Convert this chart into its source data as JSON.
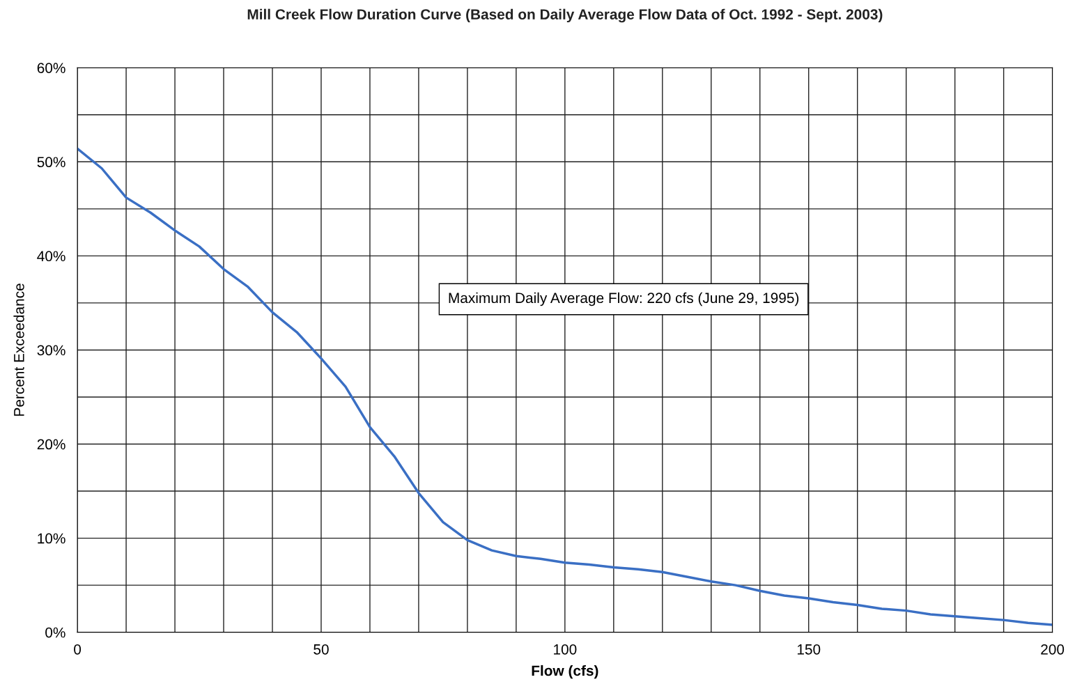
{
  "chart_data": {
    "type": "line",
    "title": "Mill Creek Flow Duration Curve (Based on Daily Average Flow Data of Oct. 1992 - Sept. 2003)",
    "xlabel": "Flow (cfs)",
    "ylabel": "Percent Exceedance",
    "x": [
      0,
      5,
      10,
      15,
      20,
      25,
      30,
      35,
      40,
      45,
      50,
      55,
      60,
      65,
      70,
      75,
      80,
      85,
      90,
      95,
      100,
      105,
      110,
      115,
      120,
      125,
      130,
      135,
      140,
      145,
      150,
      155,
      160,
      165,
      170,
      175,
      180,
      185,
      190,
      195,
      200
    ],
    "series": [
      {
        "color": "#3a6fc4",
        "values": [
          51.4,
          49.3,
          46.2,
          44.6,
          42.7,
          41.0,
          38.6,
          36.7,
          34.0,
          31.9,
          29.1,
          26.1,
          21.8,
          18.7,
          14.8,
          11.7,
          9.8,
          8.7,
          8.1,
          7.8,
          7.4,
          7.2,
          6.9,
          6.7,
          6.4,
          5.9,
          5.4,
          5.0,
          4.4,
          3.9,
          3.6,
          3.2,
          2.9,
          2.5,
          2.3,
          1.9,
          1.7,
          1.5,
          1.3,
          1.0,
          0.8
        ]
      }
    ],
    "xlim": [
      0,
      200
    ],
    "xticks": [
      0,
      {
        "value": 10,
        "label": null
      },
      {
        "value": 20,
        "label": null
      },
      {
        "value": 30,
        "label": null
      },
      {
        "value": 40,
        "label": null
      },
      50,
      {
        "value": 60,
        "label": null
      },
      {
        "value": 70,
        "label": null
      },
      {
        "value": 80,
        "label": null
      },
      {
        "value": 90,
        "label": null
      },
      100,
      {
        "value": 110,
        "label": null
      },
      {
        "value": 120,
        "label": null
      },
      {
        "value": 130,
        "label": null
      },
      {
        "value": 140,
        "label": null
      },
      150,
      {
        "value": 160,
        "label": null
      },
      {
        "value": 170,
        "label": null
      },
      {
        "value": 180,
        "label": null
      },
      {
        "value": 190,
        "label": null
      },
      200
    ],
    "ylim": [
      0,
      60
    ],
    "yticks": [
      {
        "value": 0,
        "label": "0%"
      },
      {
        "value": 5,
        "label": null
      },
      {
        "value": 10,
        "label": "10%"
      },
      {
        "value": 15,
        "label": null
      },
      {
        "value": 20,
        "label": "20%"
      },
      {
        "value": 25,
        "label": null
      },
      {
        "value": 30,
        "label": "30%"
      },
      {
        "value": 35,
        "label": null
      },
      {
        "value": 40,
        "label": "40%"
      },
      {
        "value": 45,
        "label": null
      },
      {
        "value": 50,
        "label": "50%"
      },
      {
        "value": 55,
        "label": null
      },
      {
        "value": 60,
        "label": "60%"
      }
    ],
    "grid": true,
    "legend": false,
    "marker": "none",
    "line_style": "solid",
    "annotations": [
      "Maximum Daily Average Flow: 220 cfs (June 29, 1995)"
    ]
  }
}
